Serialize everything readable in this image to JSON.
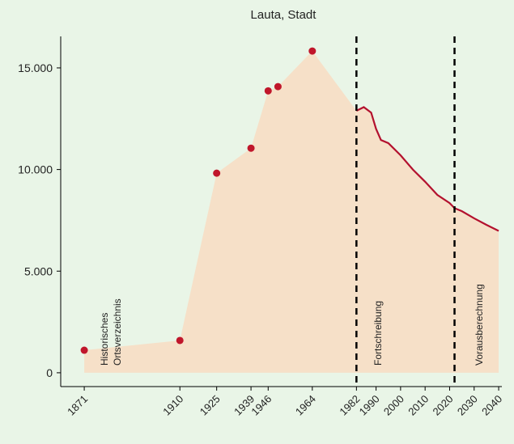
{
  "chart_data": {
    "type": "area",
    "title": "Lauta, Stadt",
    "points": {
      "color": "#c0162b",
      "x": [
        1871,
        1910,
        1925,
        1939,
        1946,
        1950,
        1964
      ],
      "values": [
        1110,
        1590,
        9820,
        11050,
        13870,
        14080,
        15830
      ]
    },
    "line": {
      "color": "#b3112e",
      "x": [
        1982,
        1985,
        1988,
        1990,
        1992,
        1995,
        2000,
        2005,
        2010,
        2015,
        2020,
        2022,
        2025,
        2030,
        2035,
        2040
      ],
      "values": [
        12890,
        13070,
        12800,
        12000,
        11450,
        11300,
        10700,
        10000,
        9400,
        8750,
        8350,
        8100,
        7950,
        7600,
        7280,
        6980
      ]
    },
    "area_color": "#f6e0c8",
    "vlines": [
      1982,
      2022
    ],
    "annotations": [
      [
        "Historisches",
        "Ortsverzeichnis"
      ],
      [
        "Fortschreibung"
      ],
      [
        "Vorausberechnung"
      ]
    ],
    "xlim": [
      1861.4,
      2041.3
    ],
    "ylim": [
      -680,
      16550
    ],
    "xticks": [
      1871,
      1910,
      1925,
      1939,
      1946,
      1964,
      1982,
      1990,
      2000,
      2010,
      2020,
      2030,
      2040
    ],
    "yticks": [
      0,
      {
        "value": 5000,
        "label": "5.000"
      },
      {
        "value": 10000,
        "label": "10.000"
      },
      {
        "value": 15000,
        "label": "15.000"
      }
    ]
  }
}
